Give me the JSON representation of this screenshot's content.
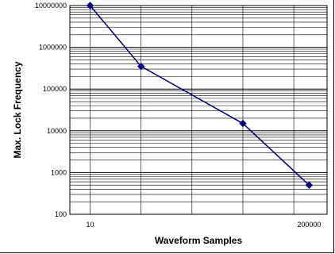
{
  "chart_data": {
    "type": "line",
    "xlabel": "Waveform Samples",
    "ylabel": "Max. Lock Frequency",
    "x_scale": "log",
    "y_scale": "log",
    "xlim": [
      4,
      450000
    ],
    "ylim": [
      100,
      10000000
    ],
    "x_tick_labels": [
      "10",
      "200000"
    ],
    "y_ticks": [
      100,
      1000,
      10000,
      100000,
      1000000,
      10000000
    ],
    "y_tick_labels": [
      "100",
      "1000",
      "10000",
      "100000",
      "1000000",
      "10000000"
    ],
    "grid": true,
    "legend": "none",
    "series": [
      {
        "x": [
          10,
          100,
          10000,
          200000
        ],
        "values": [
          10000000,
          350000,
          15000,
          500
        ],
        "color": "#000080",
        "marker": "diamond"
      }
    ]
  }
}
